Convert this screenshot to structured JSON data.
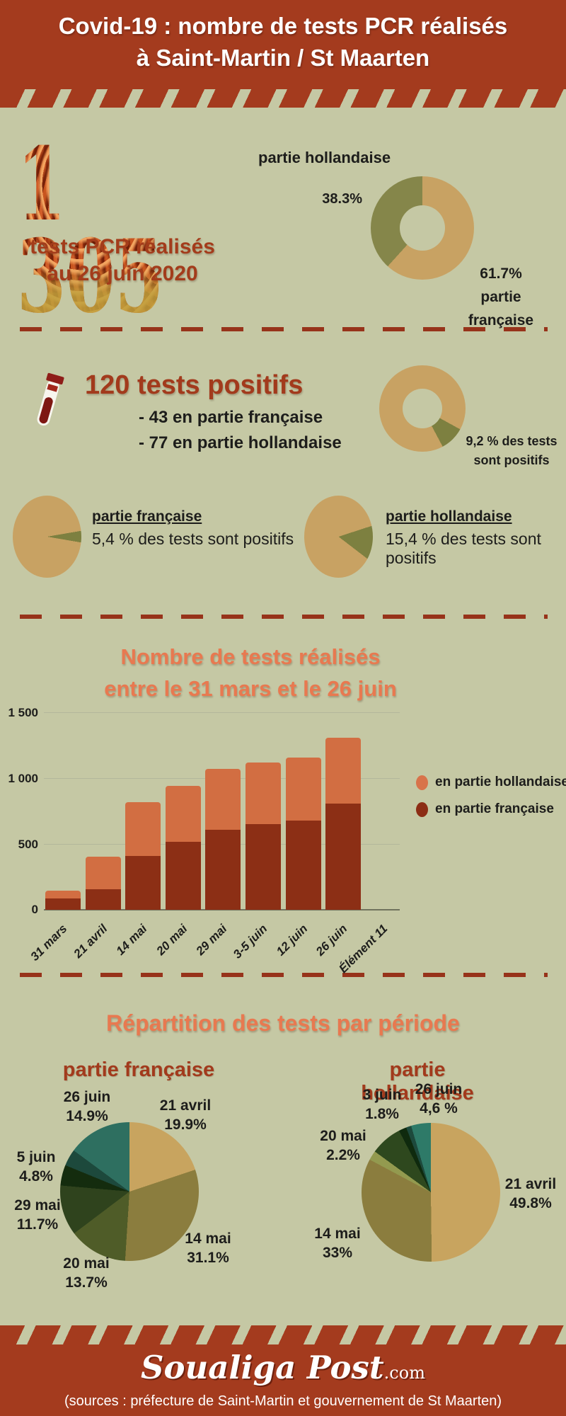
{
  "colors": {
    "background": "#c5c8a4",
    "banner_red": "#a43b1e",
    "dark_red_text": "#a23a1c",
    "orange_title": "#e87950",
    "tan": "#c8a263",
    "olive": "#85864a",
    "bar_orange": "#d26e42",
    "bar_dark_red": "#8c2f15",
    "dash_red": "#97331a"
  },
  "header": {
    "title_line1": "Covid-19 : nombre de tests PCR réalisés",
    "title_line2": "à Saint-Martin / St Maarten"
  },
  "summary": {
    "big_number": "1 305",
    "caption_line1": "tests PCR réalisés",
    "caption_line2": "au 26 juin 2020",
    "donut_label_hollandaise": "partie hollandaise",
    "donut_pct_hollandaise": "38.3%",
    "donut_pct_francaise": "61.7%",
    "donut_label_fr_line1": "partie",
    "donut_label_fr_line2": "française"
  },
  "positives": {
    "heading": "120 tests positifs",
    "line1": "- 43 en partie française",
    "line2": "- 77 en partie hollandaise",
    "donut_note_line1": "9,2 % des tests",
    "donut_note_line2": "sont positifs",
    "fr_label": "partie française",
    "fr_note": "5,4 % des tests sont positifs",
    "nl_label": "partie hollandaise",
    "nl_note": "15,4 % des tests sont positifs"
  },
  "bar_section": {
    "title_line1": "Nombre de tests réalisés",
    "title_line2": "entre le 31 mars et le 26 juin"
  },
  "repartition": {
    "title": "Répartition des tests par période",
    "fr_subtitle": "partie française",
    "nl_subtitle": "partie hollandaise"
  },
  "footer": {
    "logo_main": "Soualiga Post",
    "logo_suffix": ".com",
    "sources": "(sources : préfecture de Saint-Martin et  gouvernement de St Maarten)"
  },
  "chart_data": [
    {
      "id": "tests_par_partie",
      "type": "donut",
      "title": "1 305 tests PCR réalisés au 26 juin 2020",
      "slices": [
        {
          "label": "partie française",
          "value": 61.7,
          "color": "#c8a263",
          "display": "61.7%"
        },
        {
          "label": "partie hollandaise",
          "value": 38.3,
          "color": "#85864a",
          "display": "38.3%"
        }
      ],
      "legend_position": "around"
    },
    {
      "id": "taux_positifs_global",
      "type": "donut",
      "title": "9,2 % des tests sont positifs",
      "slices": [
        {
          "label": "tests positifs",
          "value": 9.2,
          "color": "#7d8040",
          "display": "9,2 %",
          "offset_pct": 33
        },
        {
          "label": "autres tests",
          "value": 90.8,
          "color": "#c8a263",
          "display": ""
        }
      ]
    },
    {
      "id": "taux_positifs_fr",
      "type": "pie",
      "title": "partie française : 5,4 % des tests sont positifs",
      "slices": [
        {
          "label": "tests positifs",
          "value": 5.4,
          "color": "#7d8040",
          "display": "5,4 %",
          "offset_pct": 22.3
        },
        {
          "label": "autres tests",
          "value": 94.6,
          "color": "#c8a263",
          "display": ""
        }
      ]
    },
    {
      "id": "taux_positifs_nl",
      "type": "pie",
      "title": "partie hollandaise : 15,4 % des tests sont positifs",
      "slices": [
        {
          "label": "tests positifs",
          "value": 15.4,
          "color": "#7d8040",
          "display": "15,4 %",
          "offset_pct": 20
        },
        {
          "label": "autres tests",
          "value": 84.6,
          "color": "#c8a263",
          "display": ""
        }
      ]
    },
    {
      "id": "tests_par_periode",
      "type": "bar",
      "stacked": true,
      "title": "Nombre de tests réalisés entre le 31 mars et le 26 juin",
      "categories": [
        "31 mars",
        "21 avril",
        "14 mai",
        "20 mai",
        "29 mai",
        "3-5 juin",
        "12  juin",
        "26 juin",
        "Élément 11"
      ],
      "series": [
        {
          "name": "en partie française",
          "color": "#8c2f15",
          "values": [
            85,
            155,
            410,
            515,
            610,
            650,
            680,
            805,
            null
          ]
        },
        {
          "name": "en partie hollandaise",
          "color": "#d26e42",
          "values": [
            62,
            250,
            410,
            425,
            460,
            470,
            475,
            500,
            null
          ]
        }
      ],
      "ylim": [
        0,
        1500
      ],
      "yticks": [
        "0",
        "500",
        "1 000",
        "1 500"
      ],
      "grid": true,
      "legend_position": "right",
      "legend": [
        {
          "label": "en partie hollandaise",
          "color": "#d8734a"
        },
        {
          "label": "en partie française",
          "color": "#8c2d14"
        }
      ]
    },
    {
      "id": "repartition_fr",
      "type": "pie",
      "title": "partie française",
      "slices": [
        {
          "label": "21 avril",
          "value": 19.9,
          "color": "#c8a45f",
          "display": "19.9%"
        },
        {
          "label": "14 mai",
          "value": 31.1,
          "color": "#8b7d3e",
          "display": "31.1%"
        },
        {
          "label": "20 mai",
          "value": 13.7,
          "color": "#4f5c28",
          "display": "13.7%"
        },
        {
          "label": "29 mai",
          "value": 11.7,
          "color": "#2f431d",
          "display": "11.7%"
        },
        {
          "label": "5 juin",
          "value": 4.8,
          "color": "#142c0e",
          "display": "4.8%"
        },
        {
          "label": "",
          "value": 3.9,
          "color": "#1d493c",
          "display": ""
        },
        {
          "label": "26 juin",
          "value": 14.9,
          "color": "#2e6f60",
          "display": "14.9%"
        }
      ]
    },
    {
      "id": "repartition_nl",
      "type": "pie",
      "title": "partie hollandaise",
      "slices": [
        {
          "label": "21 avril",
          "value": 49.8,
          "color": "#c8a45f",
          "display": "49.8%"
        },
        {
          "label": "14 mai",
          "value": 33,
          "color": "#8b7d3e",
          "display": "33%"
        },
        {
          "label": "20 mai",
          "value": 2.2,
          "color": "#939a4f",
          "display": "2.2%"
        },
        {
          "label": "",
          "value": 7.4,
          "color": "#2e481e",
          "display": ""
        },
        {
          "label": "3 juin",
          "value": 1.8,
          "color": "#0f2a0e",
          "display": "1.8%"
        },
        {
          "label": "",
          "value": 1.2,
          "color": "#1d493c",
          "display": ""
        },
        {
          "label": "26 juin",
          "value": 4.6,
          "color": "#2e7a68",
          "display": "4,6 %"
        }
      ]
    }
  ]
}
